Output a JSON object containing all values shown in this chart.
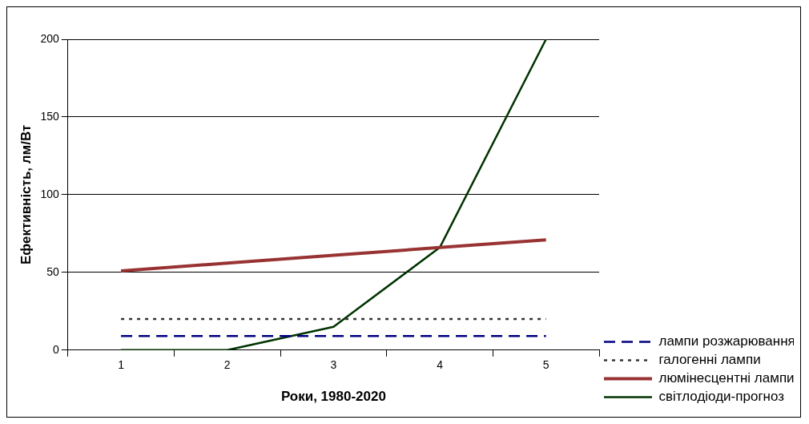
{
  "chart_data": {
    "type": "line",
    "xlabel": "Роки, 1980-2020",
    "ylabel": "Ефективність, лм/Вт",
    "categories": [
      "1",
      "2",
      "3",
      "4",
      "5"
    ],
    "series": [
      {
        "name": "лампи розжарювання",
        "color": "#000080",
        "line_style": "dashed",
        "values": [
          9,
          9,
          9,
          9,
          9
        ]
      },
      {
        "name": "галогенні лампи",
        "color": "#333333",
        "line_style": "dotted",
        "values": [
          20,
          20,
          20,
          20,
          20
        ]
      },
      {
        "name": "люмінесцентні лампи",
        "color": "#993333",
        "line_style": "solid",
        "values": [
          51,
          56,
          61,
          66,
          71
        ]
      },
      {
        "name": "світлодіоди-прогноз",
        "color": "#003300",
        "line_style": "solid",
        "values": [
          0,
          0,
          15,
          66,
          200
        ]
      }
    ],
    "ylim": [
      0,
      200
    ],
    "yticks": [
      0,
      50,
      100,
      150,
      200
    ],
    "grid": "y",
    "legend": "bottom right",
    "marker": "none"
  }
}
